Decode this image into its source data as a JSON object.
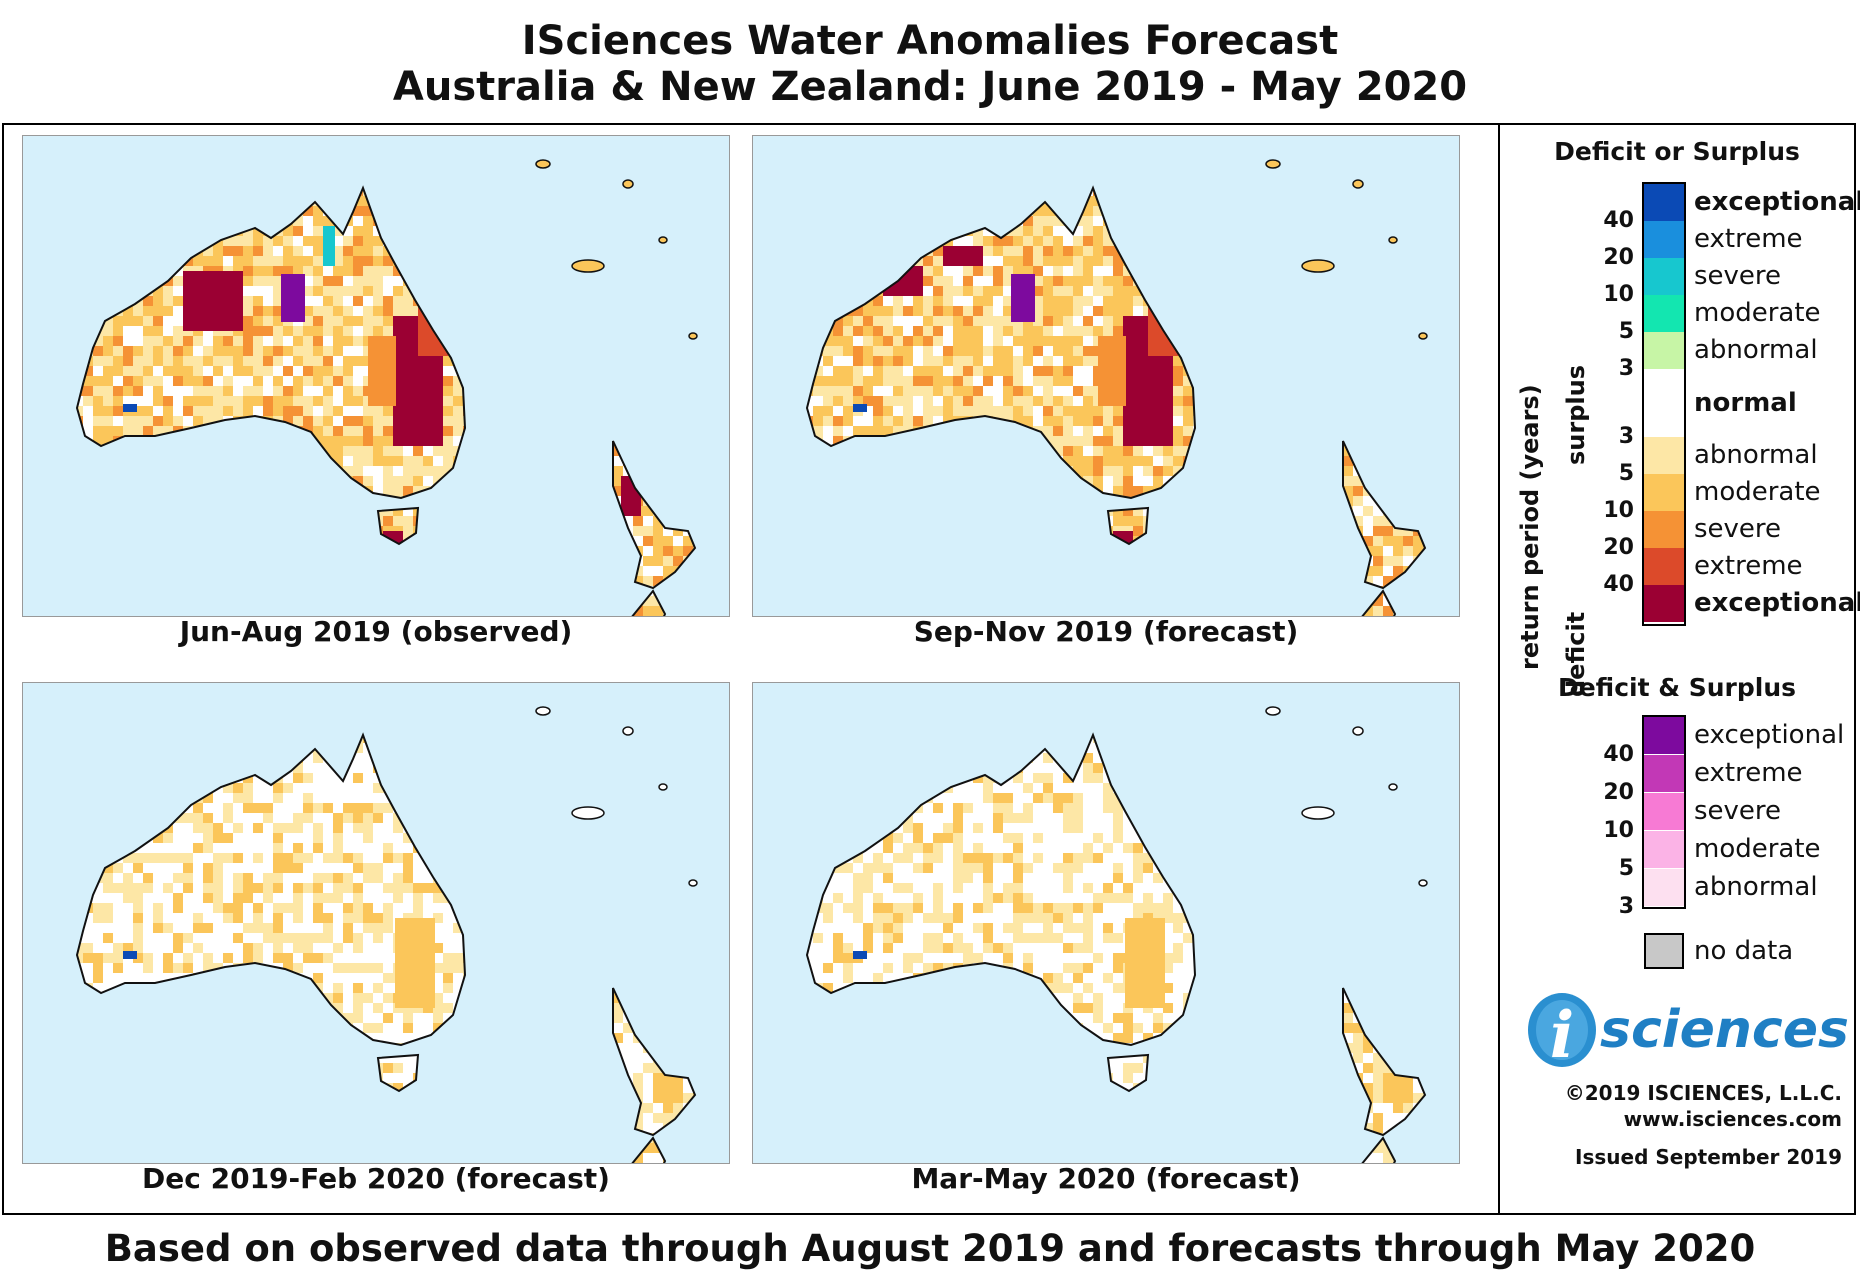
{
  "title_line1": "ISciences Water Anomalies Forecast",
  "title_line2": "Australia & New Zealand: June 2019 - May 2020",
  "footer": "Based on observed data through August 2019 and forecasts through May 2020",
  "panels": [
    {
      "caption": "Jun-Aug 2019 (observed)",
      "intensity": "high"
    },
    {
      "caption": "Sep-Nov 2019 (forecast)",
      "intensity": "high"
    },
    {
      "caption": "Dec 2019-Feb 2020 (forecast)",
      "intensity": "low"
    },
    {
      "caption": "Mar-May 2020 (forecast)",
      "intensity": "low"
    }
  ],
  "legend": {
    "heading1": "Deficit or Surplus",
    "axis_label": "return period (years)",
    "surplus_label": "surplus",
    "deficit_label": "deficit",
    "surplus_classes": [
      {
        "label": "exceptional",
        "color": "#0b4ab5"
      },
      {
        "label": "extreme",
        "color": "#1a8fdd"
      },
      {
        "label": "severe",
        "color": "#17c7cf"
      },
      {
        "label": "moderate",
        "color": "#13e6b0"
      },
      {
        "label": "abnormal",
        "color": "#c7f5a6"
      }
    ],
    "normal_label": "normal",
    "deficit_classes": [
      {
        "label": "abnormal",
        "color": "#fde7a6"
      },
      {
        "label": "moderate",
        "color": "#fbc65a"
      },
      {
        "label": "severe",
        "color": "#f59235"
      },
      {
        "label": "extreme",
        "color": "#dc4a2a"
      },
      {
        "label": "exceptional",
        "color": "#9b0033"
      }
    ],
    "surplus_ticks": [
      "40",
      "20",
      "10",
      "5",
      "3"
    ],
    "deficit_ticks": [
      "3",
      "5",
      "10",
      "20",
      "40"
    ],
    "heading2": "Deficit & Surplus",
    "both_classes": [
      {
        "label": "exceptional",
        "color": "#7d0a9e"
      },
      {
        "label": "extreme",
        "color": "#c238b6"
      },
      {
        "label": "severe",
        "color": "#f77ad4"
      },
      {
        "label": "moderate",
        "color": "#fbb3e6"
      },
      {
        "label": "abnormal",
        "color": "#fde0f0"
      }
    ],
    "both_ticks": [
      "40",
      "20",
      "10",
      "5",
      "3"
    ],
    "nodata_label": "no data",
    "nodata_color": "#c8c8c8"
  },
  "logo_text": "sciences",
  "logo_i": "i",
  "copyright": "©2019 ISCIENCES, L.L.C.",
  "website": "www.isciences.com",
  "issued": "Issued September 2019",
  "colors": {
    "ocean": "#d6f0fb",
    "land_outline": "#111111"
  }
}
